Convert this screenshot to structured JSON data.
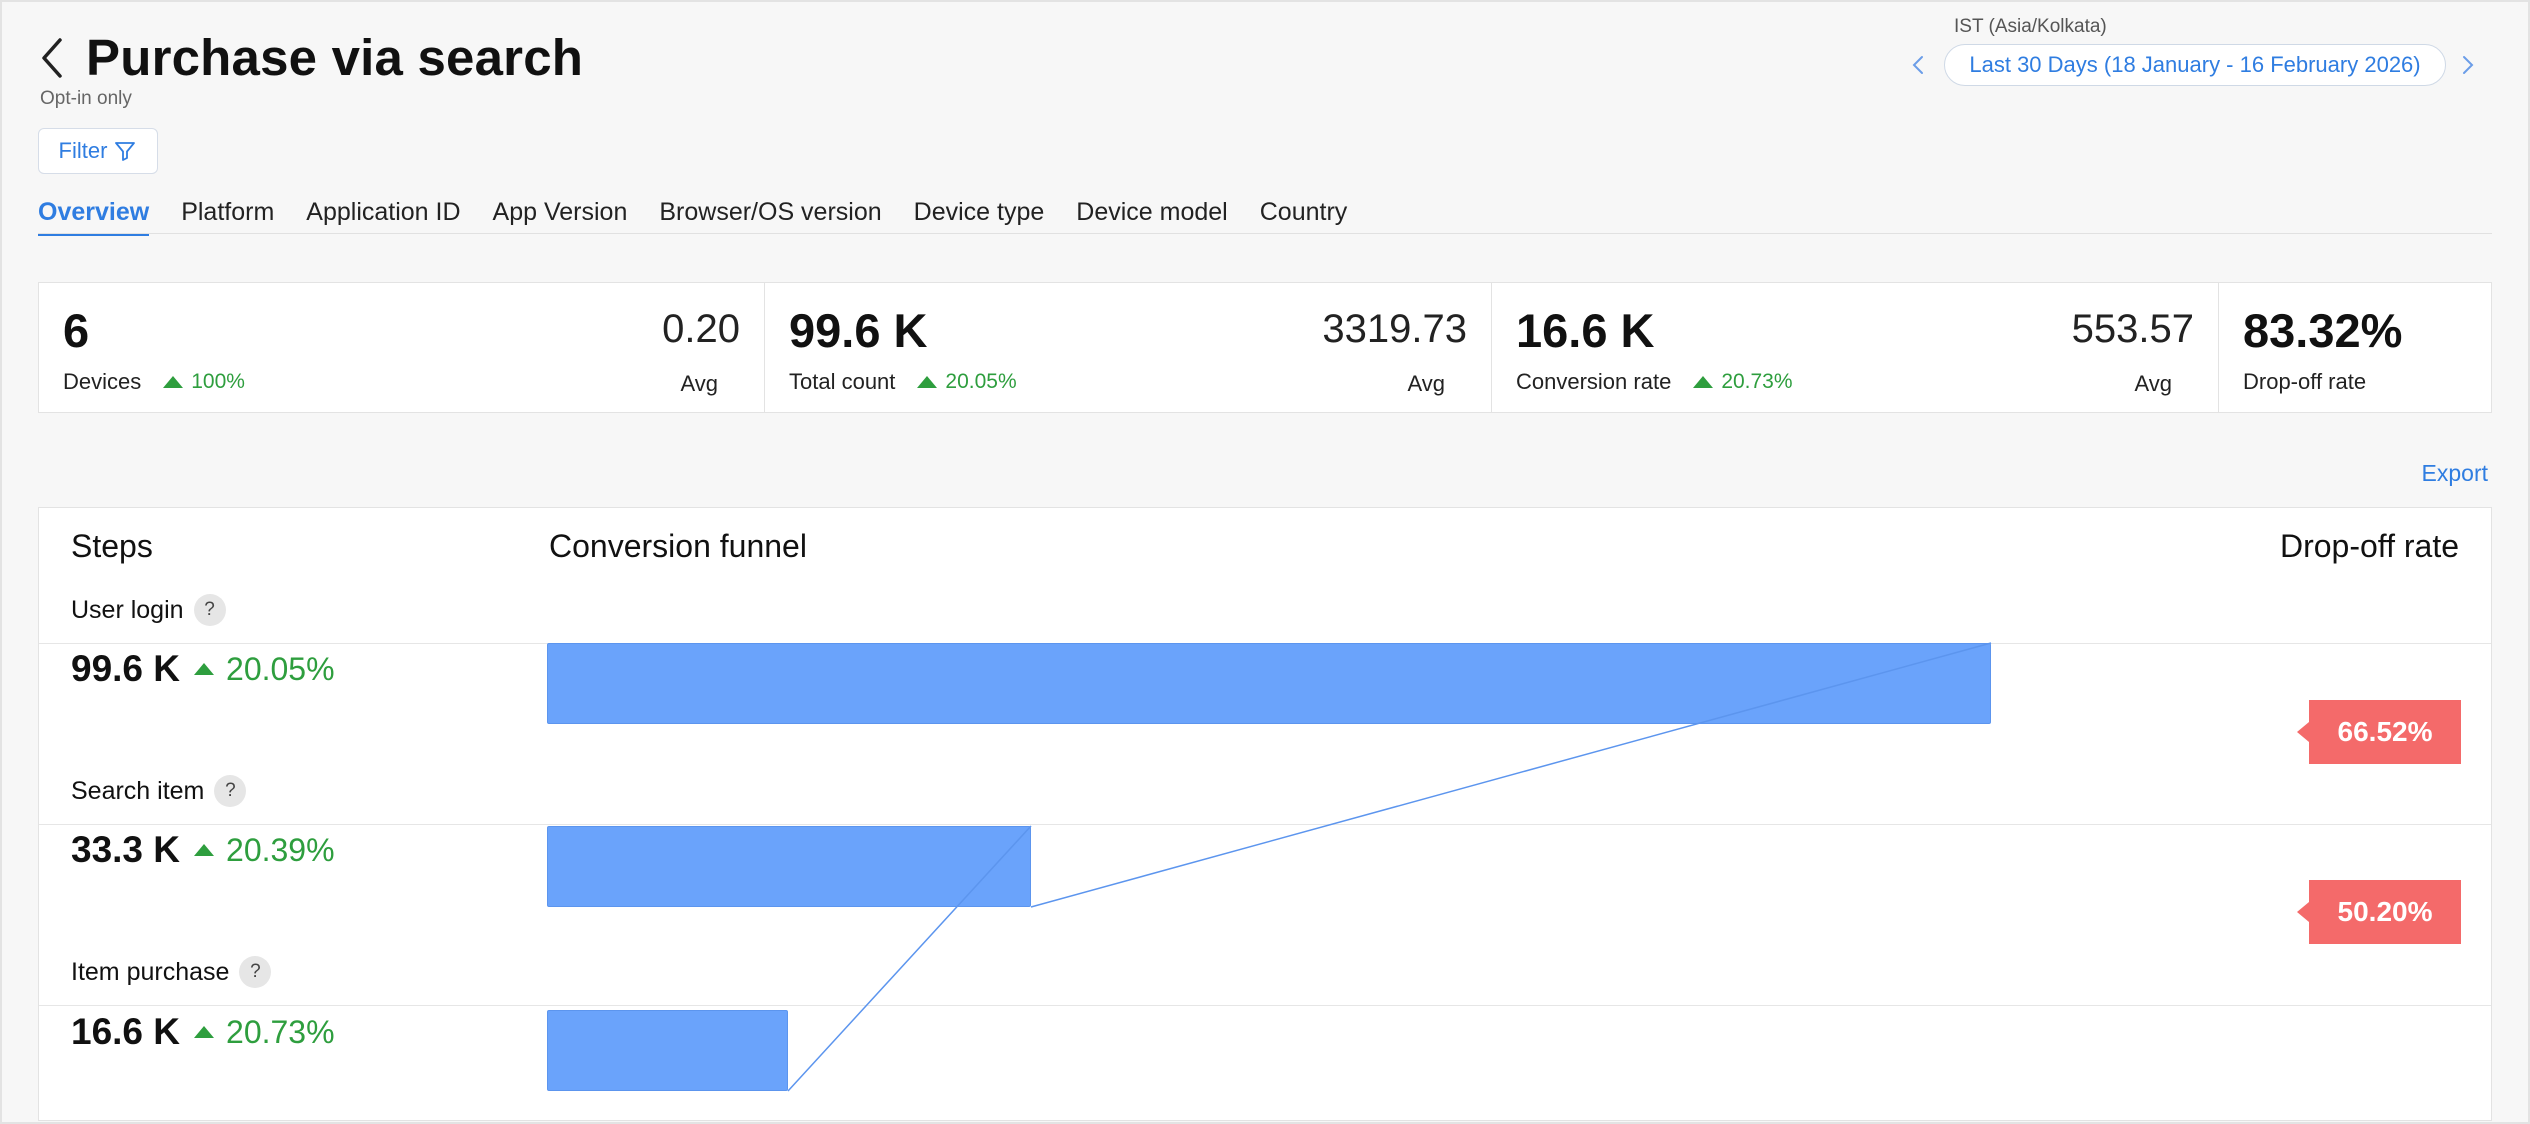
{
  "header": {
    "title": "Purchase via search",
    "subtitle": "Opt-in only",
    "filter_label": "Filter",
    "timezone": "IST (Asia/Kolkata)",
    "date_range": "Last 30 Days (18 January - 16 February 2026)"
  },
  "tabs": [
    {
      "label": "Overview",
      "active": true
    },
    {
      "label": "Platform"
    },
    {
      "label": "Application ID"
    },
    {
      "label": "App Version"
    },
    {
      "label": "Browser/OS version"
    },
    {
      "label": "Device type"
    },
    {
      "label": "Device model"
    },
    {
      "label": "Country"
    }
  ],
  "stats": [
    {
      "value": "6",
      "label": "Devices",
      "trend": "100%",
      "avg_value": "0.20",
      "avg_label": "Avg"
    },
    {
      "value": "99.6 K",
      "label": "Total count",
      "trend": "20.05%",
      "avg_value": "3319.73",
      "avg_label": "Avg"
    },
    {
      "value": "16.6 K",
      "label": "Conversion rate",
      "trend": "20.73%",
      "avg_value": "553.57",
      "avg_label": "Avg"
    },
    {
      "value": "83.32%",
      "label": "Drop-off rate"
    }
  ],
  "export_label": "Export",
  "funnel": {
    "headers": {
      "steps": "Steps",
      "conversion": "Conversion funnel",
      "dropoff": "Drop-off rate"
    },
    "steps": [
      {
        "name": "User login",
        "value": "99.6 K",
        "trend": "20.05%",
        "bar_fraction": 1.0,
        "dropoff": "66.52%"
      },
      {
        "name": "Search item",
        "value": "33.3 K",
        "trend": "20.39%",
        "bar_fraction": 0.335,
        "dropoff": "50.20%"
      },
      {
        "name": "Item purchase",
        "value": "16.6 K",
        "trend": "20.73%",
        "bar_fraction": 0.167
      }
    ],
    "help_glyph": "?"
  },
  "colors": {
    "accent": "#2f7de1",
    "bar": "#6aa3fb",
    "positive": "#2e9e3e",
    "dropoff_badge": "#f46a6a"
  }
}
